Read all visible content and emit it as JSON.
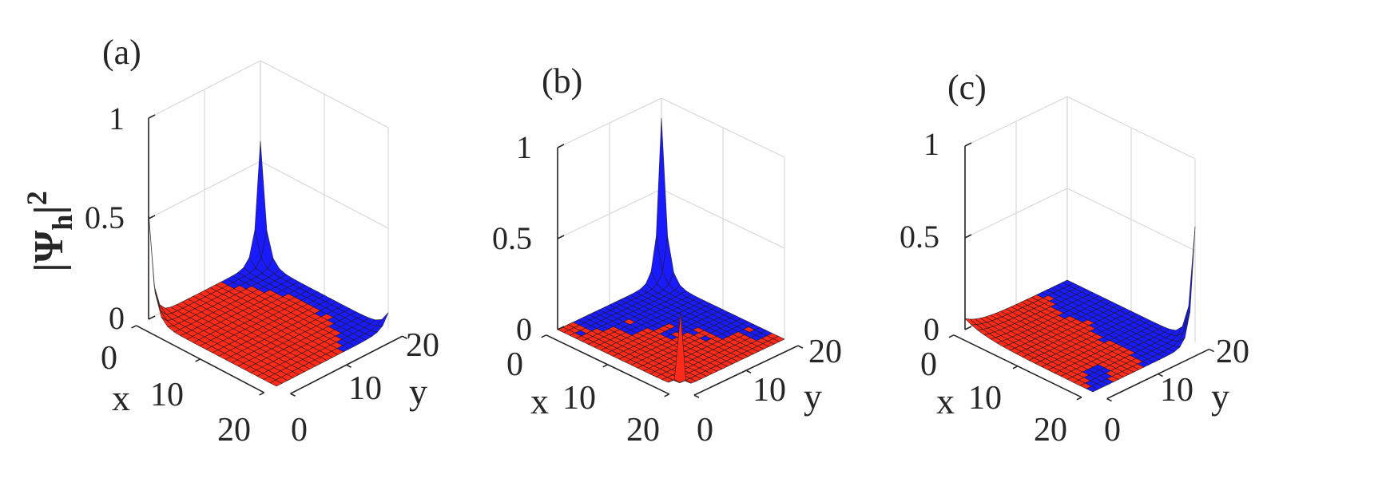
{
  "figure": {
    "zlabel_main": "|Ψ",
    "zlabel_sub": "h",
    "zlabel_tail": "|",
    "zlabel_sup": "2"
  },
  "colors": {
    "hole": "#ff2a1a",
    "particle": "#1a1aff",
    "mesh": "#1c1c1c",
    "grid": "#d8d8d8",
    "axis": "#262626"
  },
  "chart_data": [
    {
      "type": "surface",
      "panel_label": "(a)",
      "xlabel": "x",
      "ylabel": "y",
      "xticks": [
        "0",
        "10",
        "20"
      ],
      "yticks": [
        "0",
        "10",
        "20"
      ],
      "zticks": [
        "0",
        "0.5",
        "1"
      ],
      "xlim": [
        0,
        20
      ],
      "ylim": [
        0,
        20
      ],
      "zlim": [
        0,
        1
      ],
      "grid": true,
      "grid_points": 21,
      "peaks": [
        {
          "x": 0,
          "y": 0,
          "value": 0.53,
          "width": 0.8,
          "color": "hole"
        },
        {
          "x": 0,
          "y": 20,
          "value": 0.6,
          "width": 0.8,
          "color": "particle"
        },
        {
          "x": 20,
          "y": 20,
          "value": 0.08,
          "width": 1.0,
          "color": "particle"
        },
        {
          "x": 20,
          "y": 0,
          "value": 0.0,
          "width": 1.0,
          "color": "hole"
        }
      ],
      "color_domains": "red on the x≈0 and y≈0 sides, blue toward x≈20 and y≈20"
    },
    {
      "type": "surface",
      "panel_label": "(b)",
      "xlabel": "x",
      "ylabel": "y",
      "xticks": [
        "0",
        "10",
        "20"
      ],
      "yticks": [
        "0",
        "10",
        "20"
      ],
      "zticks": [
        "0",
        "0.5",
        "1"
      ],
      "xlim": [
        0,
        20
      ],
      "ylim": [
        0,
        20
      ],
      "zlim": [
        0,
        1
      ],
      "grid": true,
      "grid_points": 21,
      "peaks": [
        {
          "x": 0,
          "y": 20,
          "value": 0.89,
          "width": 0.8,
          "color": "particle"
        },
        {
          "x": 20,
          "y": 0,
          "value": 0.42,
          "width": 0.4,
          "color": "hole"
        }
      ],
      "color_domains": "blue on the upper-left half, red on the lower-right half"
    },
    {
      "type": "surface",
      "panel_label": "(c)",
      "xlabel": "x",
      "ylabel": "y",
      "xticks": [
        "0",
        "10",
        "20"
      ],
      "yticks": [
        "0",
        "10",
        "20"
      ],
      "zticks": [
        "0",
        "0.5",
        "1"
      ],
      "xlim": [
        0,
        20
      ],
      "ylim": [
        0,
        20
      ],
      "zlim": [
        0,
        1
      ],
      "grid": true,
      "grid_points": 21,
      "peaks": [
        {
          "x": 20,
          "y": 20,
          "value": 0.63,
          "width": 0.8,
          "color": "particle"
        },
        {
          "x": 0,
          "y": 0,
          "value": 0.06,
          "width": 3.0,
          "color": "hole"
        }
      ],
      "color_domains": "red over most of the surface, blue near y≈20"
    }
  ]
}
